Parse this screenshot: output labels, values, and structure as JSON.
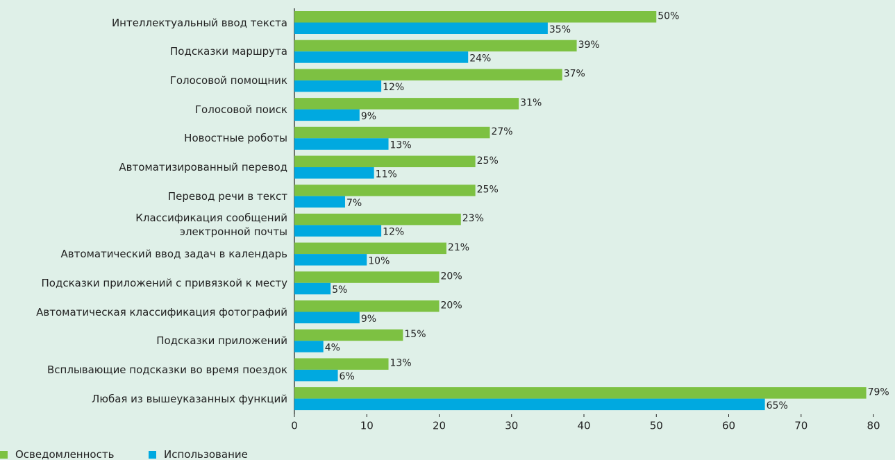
{
  "chart_data": {
    "type": "bar",
    "orientation": "horizontal",
    "categories": [
      "Интеллектуальный ввод текста",
      "Подсказки маршрута",
      "Голосовой помощник",
      "Голосовой поиск",
      "Новостные роботы",
      "Автоматизированный перевод",
      "Перевод речи в текст",
      "Классификация сообщений \nэлектронной почты",
      "Автоматический ввод задач в календарь",
      "Подсказки приложений с привязкой к месту",
      "Автоматическая классификация фотографий",
      "Подсказки приложений",
      "Всплывающие подсказки во время поездок",
      "Любая из вышеуказанных функций"
    ],
    "series": [
      {
        "name": "Осведомленность",
        "color": "#7dc142",
        "values": [
          50,
          39,
          37,
          31,
          27,
          25,
          25,
          23,
          21,
          20,
          20,
          15,
          13,
          79
        ],
        "value_labels": [
          "50%",
          "39%",
          "37%",
          "31%",
          "27%",
          "25%",
          "25%",
          "23%",
          "21%",
          "20%",
          "20%",
          "15%",
          "13%",
          "79%"
        ]
      },
      {
        "name": "Использование",
        "color": "#00a9e0",
        "values": [
          35,
          24,
          12,
          9,
          13,
          11,
          7,
          12,
          10,
          5,
          9,
          4,
          6,
          65
        ],
        "value_labels": [
          "35%",
          "24%",
          "12%",
          "9%",
          "13%",
          "11%",
          "7%",
          "12%",
          "10%",
          "5%",
          "9%",
          "4%",
          "6%",
          "65%"
        ]
      }
    ],
    "xlim": [
      0,
      80
    ],
    "xticks": [
      0,
      10,
      20,
      30,
      40,
      50,
      60,
      70,
      80
    ],
    "legend": "bottom-left"
  }
}
